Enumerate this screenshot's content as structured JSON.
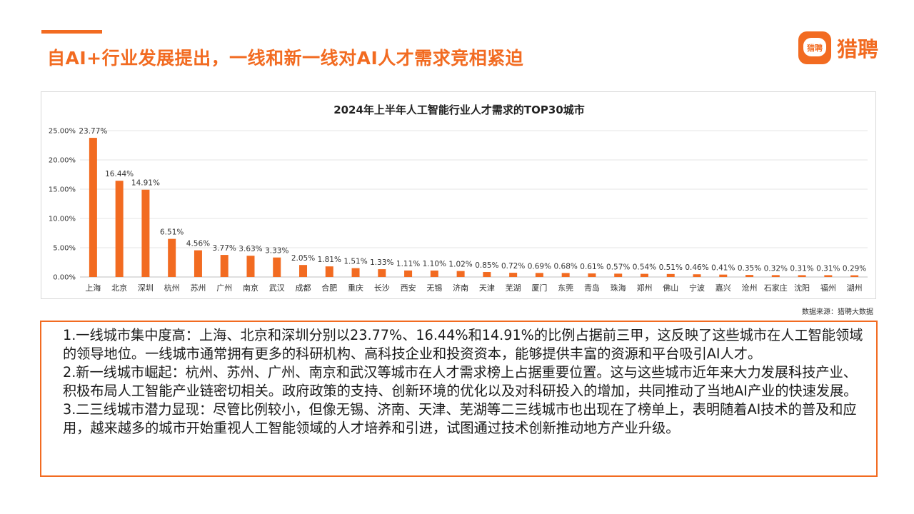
{
  "header": {
    "title": "自AI+行业发展提出，一线和新一线对AI人才需求竞相紧迫",
    "logo_text": "猎聘",
    "logo_mark_text": "猎聘",
    "accent_color": "#F26B21"
  },
  "chart_data": {
    "type": "bar",
    "title": "2024年上半年人工智能行业人才需求的TOP30城市",
    "categories": [
      "上海",
      "北京",
      "深圳",
      "杭州",
      "苏州",
      "广州",
      "南京",
      "武汉",
      "成都",
      "合肥",
      "重庆",
      "长沙",
      "西安",
      "无锡",
      "济南",
      "天津",
      "芜湖",
      "厦门",
      "东莞",
      "青岛",
      "珠海",
      "郑州",
      "佛山",
      "宁波",
      "嘉兴",
      "沧州",
      "石家庄",
      "沈阳",
      "福州",
      "湖州"
    ],
    "values": [
      23.77,
      16.44,
      14.91,
      6.51,
      4.56,
      3.77,
      3.63,
      3.33,
      2.05,
      1.81,
      1.51,
      1.33,
      1.11,
      1.1,
      1.02,
      0.85,
      0.72,
      0.69,
      0.68,
      0.61,
      0.57,
      0.54,
      0.51,
      0.46,
      0.41,
      0.35,
      0.32,
      0.31,
      0.31,
      0.29
    ],
    "value_labels": [
      "23.77%",
      "16.44%",
      "14.91%",
      "6.51%",
      "4.56%",
      "3.77%",
      "3.63%",
      "3.33%",
      "2.05%",
      "1.81%",
      "1.51%",
      "1.33%",
      "1.11%",
      "1.10%",
      "1.02%",
      "0.85%",
      "0.72%",
      "0.69%",
      "0.68%",
      "0.61%",
      "0.57%",
      "0.54%",
      "0.51%",
      "0.46%",
      "0.41%",
      "0.35%",
      "0.32%",
      "0.31%",
      "0.31%",
      "0.29%"
    ],
    "y_ticks": [
      0,
      5,
      10,
      15,
      20,
      25
    ],
    "y_tick_labels": [
      "0.00%",
      "5.00%",
      "10.00%",
      "15.00%",
      "20.00%",
      "25.00%"
    ],
    "ylim": [
      0,
      25
    ],
    "xlabel": "",
    "ylabel": "",
    "grid": true,
    "bar_color": "#F26B21"
  },
  "source_note": "数据来源：猎聘大数据",
  "analysis": {
    "p1": "1.一线城市集中度高：上海、北京和深圳分别以23.77%、16.44%和14.91%的比例占据前三甲，这反映了这些城市在人工智能领域的领导地位。一线城市通常拥有更多的科研机构、高科技企业和投资资本，能够提供丰富的资源和平台吸引AI人才。",
    "p2": "2.新一线城市崛起：杭州、苏州、广州、南京和武汉等城市在人才需求榜上占据重要位置。这与这些城市近年来大力发展科技产业、积极布局人工智能产业链密切相关。政府政策的支持、创新环境的优化以及对科研投入的增加，共同推动了当地AI产业的快速发展。",
    "p3": "3.二三线城市潜力显现：尽管比例较小，但像无锡、济南、天津、芜湖等二三线城市也出现在了榜单上，表明随着AI技术的普及和应用，越来越多的城市开始重视人工智能领域的人才培养和引进，试图通过技术创新推动地方产业升级。"
  }
}
